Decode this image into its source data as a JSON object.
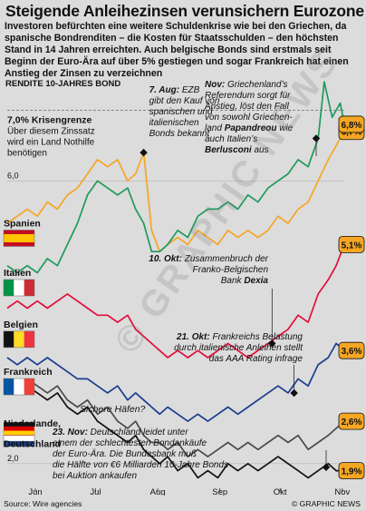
{
  "header": {
    "title": "Steigende Anleihezinsen verunsichern Eurozone",
    "intro": "Investoren befürchten eine weitere Schuldenkrise wie bei den Griechen, da spanische Bondrenditen – die Kosten für Staatsschulden – den höchsten Stand in 14 Jahren erreichten. Auch belgische Bonds sind erstmals seit Beginn der Euro-Ära auf über 5% gestiegen und sogar Frankreich hat einen Anstieg der Zinsen zu verzeichnen"
  },
  "footer": {
    "source": "Source: Wire agencies",
    "copyright": "© GRAPHIC NEWS"
  },
  "watermark": "© GRAPHIC NEWS",
  "colors": {
    "background": "#dcdcdc",
    "spain": "#f5a623",
    "italy": "#1f9a5c",
    "belgium": "#e0103a",
    "france": "#1a3d8f",
    "germany": "#111111",
    "netherlands": "#4a4a4a",
    "label_box": "#f5a623"
  },
  "chart_data": {
    "type": "line",
    "title": "RENDITE 10-JAHRES BOND",
    "ylim": [
      1.6,
      7.3
    ],
    "y_ticks": [
      {
        "value": 6.0,
        "label": "6,0"
      },
      {
        "value": 2.0,
        "label": "2,0"
      }
    ],
    "x_labels": [
      "Jun",
      "Jul",
      "Aug",
      "Sep",
      "Okt",
      "Nov"
    ],
    "x_domain": [
      0,
      168
    ],
    "x_label_days": [
      14,
      44,
      75,
      106,
      136,
      167
    ],
    "x_event_days": {
      "aug7": 68,
      "okt10": 132,
      "okt21": 143,
      "nov1": 154,
      "nov23": 176
    },
    "threshold": {
      "value": 7.0,
      "label": "7,0% Krisengrenze",
      "text": "Über diesem Zinssatz wird ein Land Nothilfe benötigen"
    },
    "series": [
      {
        "name": "Spanien",
        "color_key": "spain",
        "end_label": "6,7%",
        "end_value": 6.7,
        "points": [
          [
            0,
            5.4
          ],
          [
            5,
            5.5
          ],
          [
            10,
            5.6
          ],
          [
            15,
            5.5
          ],
          [
            20,
            5.7
          ],
          [
            25,
            5.6
          ],
          [
            30,
            5.8
          ],
          [
            35,
            5.9
          ],
          [
            40,
            6.1
          ],
          [
            45,
            6.3
          ],
          [
            50,
            6.2
          ],
          [
            55,
            6.3
          ],
          [
            60,
            6.0
          ],
          [
            64,
            6.1
          ],
          [
            68,
            6.4
          ],
          [
            72,
            5.3
          ],
          [
            76,
            5.0
          ],
          [
            80,
            5.1
          ],
          [
            85,
            5.2
          ],
          [
            90,
            5.1
          ],
          [
            95,
            5.3
          ],
          [
            100,
            5.2
          ],
          [
            105,
            5.1
          ],
          [
            110,
            5.3
          ],
          [
            115,
            5.2
          ],
          [
            120,
            5.3
          ],
          [
            125,
            5.2
          ],
          [
            130,
            5.3
          ],
          [
            135,
            5.5
          ],
          [
            140,
            5.4
          ],
          [
            145,
            5.6
          ],
          [
            150,
            5.7
          ],
          [
            155,
            6.0
          ],
          [
            160,
            6.3
          ],
          [
            164,
            6.5
          ],
          [
            168,
            6.7
          ]
        ]
      },
      {
        "name": "Italien",
        "color_key": "italy",
        "end_label": "6,8%",
        "end_value": 6.8,
        "points": [
          [
            0,
            4.8
          ],
          [
            5,
            4.7
          ],
          [
            10,
            4.8
          ],
          [
            15,
            4.7
          ],
          [
            20,
            4.9
          ],
          [
            25,
            4.8
          ],
          [
            30,
            5.1
          ],
          [
            35,
            5.4
          ],
          [
            40,
            5.8
          ],
          [
            45,
            6.0
          ],
          [
            50,
            5.9
          ],
          [
            55,
            5.8
          ],
          [
            60,
            5.9
          ],
          [
            64,
            5.6
          ],
          [
            68,
            5.4
          ],
          [
            72,
            5.0
          ],
          [
            76,
            5.0
          ],
          [
            80,
            5.1
          ],
          [
            85,
            5.3
          ],
          [
            90,
            5.2
          ],
          [
            95,
            5.5
          ],
          [
            100,
            5.6
          ],
          [
            105,
            5.6
          ],
          [
            110,
            5.7
          ],
          [
            115,
            5.6
          ],
          [
            120,
            5.8
          ],
          [
            125,
            5.7
          ],
          [
            130,
            5.9
          ],
          [
            135,
            6.0
          ],
          [
            140,
            6.1
          ],
          [
            145,
            6.3
          ],
          [
            150,
            6.2
          ],
          [
            155,
            6.6
          ],
          [
            158,
            7.4
          ],
          [
            162,
            6.9
          ],
          [
            166,
            7.1
          ],
          [
            168,
            6.8
          ]
        ]
      },
      {
        "name": "Belgien",
        "color_key": "belgium",
        "end_label": "5,1%",
        "end_value": 5.1,
        "points": [
          [
            0,
            4.2
          ],
          [
            5,
            4.3
          ],
          [
            10,
            4.2
          ],
          [
            15,
            4.3
          ],
          [
            20,
            4.2
          ],
          [
            25,
            4.3
          ],
          [
            30,
            4.4
          ],
          [
            35,
            4.3
          ],
          [
            40,
            4.2
          ],
          [
            45,
            4.1
          ],
          [
            50,
            4.1
          ],
          [
            55,
            4.0
          ],
          [
            60,
            4.1
          ],
          [
            64,
            3.9
          ],
          [
            68,
            3.8
          ],
          [
            72,
            3.7
          ],
          [
            76,
            3.6
          ],
          [
            80,
            3.5
          ],
          [
            85,
            3.6
          ],
          [
            90,
            3.5
          ],
          [
            95,
            3.6
          ],
          [
            100,
            3.5
          ],
          [
            105,
            3.6
          ],
          [
            110,
            3.7
          ],
          [
            115,
            3.6
          ],
          [
            120,
            3.5
          ],
          [
            125,
            3.6
          ],
          [
            130,
            3.7
          ],
          [
            135,
            3.8
          ],
          [
            140,
            3.9
          ],
          [
            145,
            4.1
          ],
          [
            150,
            4.0
          ],
          [
            155,
            4.4
          ],
          [
            160,
            4.6
          ],
          [
            164,
            4.8
          ],
          [
            168,
            5.1
          ]
        ]
      },
      {
        "name": "Frankreich",
        "color_key": "france",
        "end_label": "3,6%",
        "end_value": 3.6,
        "points": [
          [
            0,
            3.5
          ],
          [
            5,
            3.4
          ],
          [
            10,
            3.5
          ],
          [
            15,
            3.4
          ],
          [
            20,
            3.5
          ],
          [
            25,
            3.4
          ],
          [
            30,
            3.3
          ],
          [
            35,
            3.2
          ],
          [
            40,
            3.2
          ],
          [
            45,
            3.1
          ],
          [
            50,
            3.0
          ],
          [
            55,
            3.1
          ],
          [
            60,
            2.9
          ],
          [
            64,
            3.0
          ],
          [
            68,
            2.9
          ],
          [
            72,
            2.8
          ],
          [
            76,
            2.7
          ],
          [
            80,
            2.8
          ],
          [
            85,
            2.7
          ],
          [
            90,
            2.6
          ],
          [
            95,
            2.7
          ],
          [
            100,
            2.6
          ],
          [
            105,
            2.7
          ],
          [
            110,
            2.8
          ],
          [
            115,
            2.7
          ],
          [
            120,
            2.8
          ],
          [
            125,
            2.9
          ],
          [
            130,
            3.0
          ],
          [
            135,
            3.1
          ],
          [
            140,
            3.0
          ],
          [
            145,
            3.2
          ],
          [
            150,
            3.1
          ],
          [
            155,
            3.4
          ],
          [
            160,
            3.5
          ],
          [
            164,
            3.7
          ],
          [
            168,
            3.6
          ]
        ]
      },
      {
        "name": "Niederlande",
        "color_key": "netherlands",
        "end_label": "2,6%",
        "end_value": 2.6,
        "points": [
          [
            0,
            3.2
          ],
          [
            5,
            3.1
          ],
          [
            10,
            3.2
          ],
          [
            15,
            3.1
          ],
          [
            20,
            3.0
          ],
          [
            25,
            3.1
          ],
          [
            30,
            2.9
          ],
          [
            35,
            2.8
          ],
          [
            40,
            2.9
          ],
          [
            45,
            2.7
          ],
          [
            50,
            2.8
          ],
          [
            55,
            2.6
          ],
          [
            60,
            2.5
          ],
          [
            64,
            2.6
          ],
          [
            68,
            2.4
          ],
          [
            72,
            2.3
          ],
          [
            76,
            2.3
          ],
          [
            80,
            2.2
          ],
          [
            85,
            2.3
          ],
          [
            90,
            2.1
          ],
          [
            95,
            2.2
          ],
          [
            100,
            2.1
          ],
          [
            105,
            2.2
          ],
          [
            110,
            2.3
          ],
          [
            115,
            2.2
          ],
          [
            120,
            2.3
          ],
          [
            125,
            2.2
          ],
          [
            130,
            2.3
          ],
          [
            135,
            2.4
          ],
          [
            140,
            2.3
          ],
          [
            145,
            2.4
          ],
          [
            150,
            2.2
          ],
          [
            155,
            2.3
          ],
          [
            160,
            2.4
          ],
          [
            164,
            2.5
          ],
          [
            168,
            2.6
          ]
        ]
      },
      {
        "name": "Deutschland",
        "color_key": "germany",
        "end_label": "1,9%",
        "end_value": 1.9,
        "points": [
          [
            0,
            3.1
          ],
          [
            5,
            3.0
          ],
          [
            10,
            3.1
          ],
          [
            15,
            3.0
          ],
          [
            20,
            2.9
          ],
          [
            25,
            3.0
          ],
          [
            30,
            2.8
          ],
          [
            35,
            2.7
          ],
          [
            40,
            2.8
          ],
          [
            45,
            2.6
          ],
          [
            50,
            2.5
          ],
          [
            55,
            2.4
          ],
          [
            60,
            2.3
          ],
          [
            64,
            2.4
          ],
          [
            68,
            2.2
          ],
          [
            72,
            2.1
          ],
          [
            76,
            2.0
          ],
          [
            80,
            2.1
          ],
          [
            85,
            1.9
          ],
          [
            90,
            2.0
          ],
          [
            95,
            1.8
          ],
          [
            100,
            1.9
          ],
          [
            105,
            1.8
          ],
          [
            110,
            2.0
          ],
          [
            115,
            1.9
          ],
          [
            120,
            2.0
          ],
          [
            125,
            1.9
          ],
          [
            130,
            2.0
          ],
          [
            135,
            2.1
          ],
          [
            140,
            2.0
          ],
          [
            145,
            1.9
          ],
          [
            150,
            1.8
          ],
          [
            155,
            1.9
          ],
          [
            160,
            2.0
          ],
          [
            164,
            1.9
          ],
          [
            168,
            1.9
          ]
        ]
      }
    ],
    "country_labels": [
      {
        "text": "Spanien",
        "flag": "es"
      },
      {
        "text": "Italien",
        "flag": "it"
      },
      {
        "text": "Belgien",
        "flag": "be"
      },
      {
        "text": "Frankreich",
        "flag": "fr"
      },
      {
        "text": "Niederlande,",
        "flag": "nl"
      },
      {
        "text": "Deutschland",
        "flag": "de"
      }
    ],
    "annotations": [
      {
        "id": "aug7",
        "lines": [
          [
            "7. Aug:",
            " EZB"
          ],
          [
            "gibt den Kauf von"
          ],
          [
            "spanischen und"
          ],
          [
            "italienischen"
          ],
          [
            "Bonds bekannt"
          ]
        ]
      },
      {
        "id": "nov1",
        "lines": [
          [
            "Nov:",
            " Griechenland’s"
          ],
          [
            "Referendum sorgt für"
          ],
          [
            "Anstieg, löst den Fall"
          ],
          [
            "von sowohl Griechen-"
          ],
          [
            "land ",
            "Papandreou",
            " wie"
          ],
          [
            "auch Italien’s"
          ],
          [
            "Berlusconi",
            " aus"
          ]
        ]
      },
      {
        "id": "okt10",
        "lines": [
          [
            "10. Okt:",
            " Zusammenbruch der"
          ],
          [
            "Franko-Belgischen"
          ],
          [
            "Bank ",
            "Dexia"
          ]
        ]
      },
      {
        "id": "okt21",
        "lines": [
          [
            "21. Okt:",
            " Frankreichs Belastung"
          ],
          [
            "durch italienische Anleihen stellt"
          ],
          [
            "das AAA Rating infrage"
          ]
        ]
      },
      {
        "id": "nov23",
        "lines": [
          [
            "23. Nov:",
            " Deutschland leidet unter"
          ],
          [
            "einem der schlechtesten Bondankäufe"
          ],
          [
            "der Euro-Ära. Die Bundesbank muß"
          ],
          [
            "die Hälfte von €6 Milliarden 10-Jahre Bonds"
          ],
          [
            "bei Auktion ankaufen"
          ]
        ]
      },
      {
        "id": "safe",
        "lines": [
          [
            "Sichere Häfen?"
          ]
        ]
      }
    ]
  }
}
